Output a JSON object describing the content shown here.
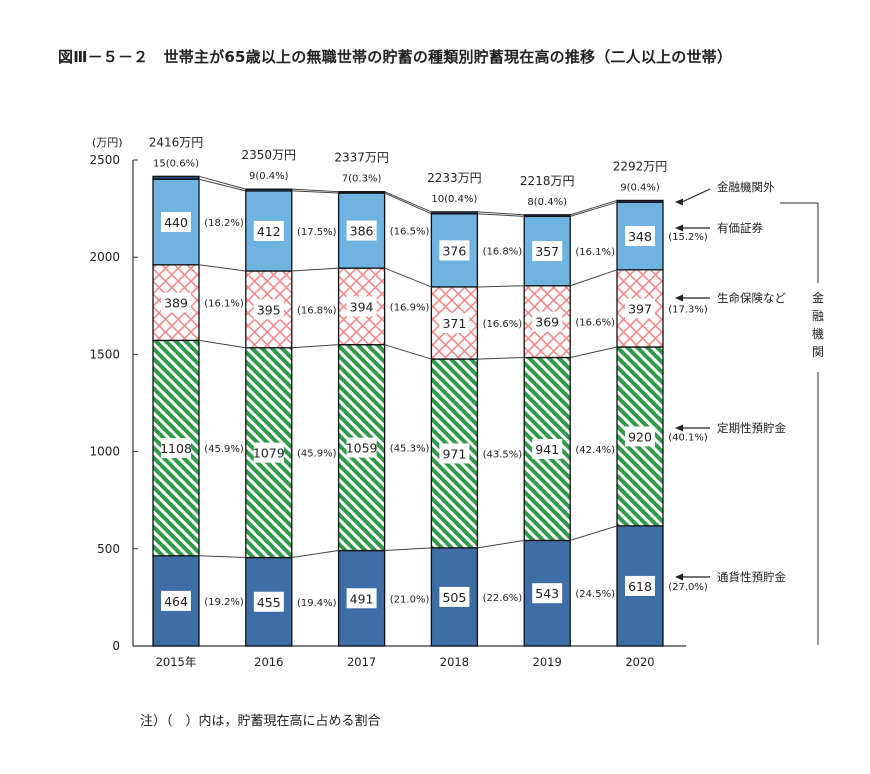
{
  "title": "図Ⅲ－５－２　世帯主が65歳以上の無職世帯の貯蓄の種類別貯蓄現在高の推移（二人以上の世帯）",
  "note": "注）（　）内は，貯蓄現在高に占める割合",
  "chart_data": {
    "type": "bar",
    "stacked": true,
    "title": "世帯主が65歳以上の無職世帯の貯蓄の種類別貯蓄現在高の推移（二人以上の世帯）",
    "ylabel": "(万円)",
    "ylim": [
      0,
      2500
    ],
    "yticks": [
      0,
      500,
      1000,
      1500,
      2000,
      2500
    ],
    "categories": [
      "2015年",
      "2016",
      "2017",
      "2018",
      "2019",
      "2020"
    ],
    "totals": [
      "2416万円",
      "2350万円",
      "2337万円",
      "2233万円",
      "2218万円",
      "2292万円"
    ],
    "series": [
      {
        "name": "通貨性預貯金",
        "color": "#3f6ea6",
        "pattern": "solid",
        "values": [
          464,
          455,
          491,
          505,
          543,
          618
        ],
        "pct": [
          "(19.2%)",
          "(19.4%)",
          "(21.0%)",
          "(22.6%)",
          "(24.5%)",
          "(27.0%)"
        ]
      },
      {
        "name": "定期性預貯金",
        "color": "#2e9a4a",
        "pattern": "hatch",
        "values": [
          1108,
          1079,
          1059,
          971,
          941,
          920
        ],
        "pct": [
          "(45.9%)",
          "(45.9%)",
          "(45.3%)",
          "(43.5%)",
          "(42.4%)",
          "(40.1%)"
        ]
      },
      {
        "name": "生命保険など",
        "color": "#f08a8a",
        "pattern": "crosshatch",
        "values": [
          389,
          395,
          394,
          371,
          369,
          397
        ],
        "pct": [
          "(16.1%)",
          "(16.8%)",
          "(16.9%)",
          "(16.6%)",
          "(16.6%)",
          "(17.3%)"
        ]
      },
      {
        "name": "有価証券",
        "color": "#6fb4e0",
        "pattern": "solid",
        "values": [
          440,
          412,
          386,
          376,
          357,
          348
        ],
        "pct": [
          "(18.2%)",
          "(17.5%)",
          "(16.5%)",
          "(16.8%)",
          "(16.1%)",
          "(15.2%)"
        ]
      },
      {
        "name": "金融機関外",
        "color": "#2b4a7a",
        "pattern": "solid",
        "values": [
          15,
          9,
          7,
          10,
          8,
          9
        ],
        "pct": [
          "(0.6%)",
          "(0.4%)",
          "(0.3%)",
          "(0.4%)",
          "(0.4%)",
          "(0.4%)"
        ]
      }
    ],
    "group_label": "金融機関",
    "legend": "right"
  }
}
